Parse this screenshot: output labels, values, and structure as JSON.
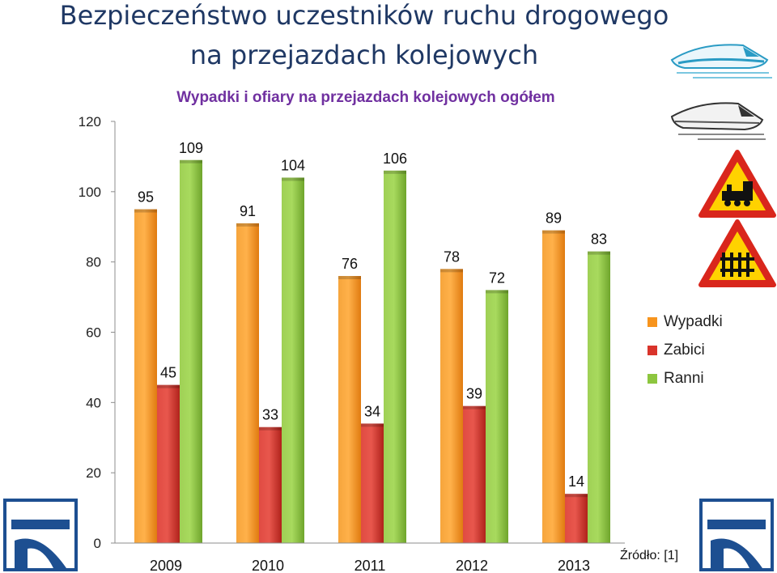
{
  "slide": {
    "title_line1": "Bezpieczeństwo uczestników ruchu drogowego",
    "title_line2": "na przejazdach kolejowych",
    "source": "Źródło: [1]"
  },
  "colors": {
    "title": "#1f3864",
    "subtitle": "#7030a0",
    "wypadki": "#f7941d",
    "zabici": "#d9342b",
    "ranni": "#8dc63f",
    "logo_blue": "#1d4f91"
  },
  "chart_data": {
    "type": "bar",
    "title": "Wypadki i ofiary na przejazdach kolejowych ogółem",
    "categories": [
      "2009",
      "2010",
      "2011",
      "2012",
      "2013"
    ],
    "series": [
      {
        "name": "Wypadki",
        "values": [
          95,
          91,
          76,
          78,
          89
        ]
      },
      {
        "name": "Zabici",
        "values": [
          45,
          33,
          34,
          39,
          14
        ]
      },
      {
        "name": "Ranni",
        "values": [
          109,
          104,
          106,
          72,
          83
        ]
      }
    ],
    "y_ticks": [
      0,
      20,
      40,
      60,
      80,
      100,
      120
    ],
    "y_tick_labels": [
      "0",
      "20",
      "40",
      "60",
      "80",
      "100",
      "120"
    ],
    "ylim": [
      0,
      120
    ],
    "grid": false,
    "legend_position": "right"
  },
  "icons": [
    "train-icon",
    "train-icon",
    "railway-crossing-sign-icon",
    "railway-crossing-sign-icon",
    "pkp-logo-icon"
  ]
}
